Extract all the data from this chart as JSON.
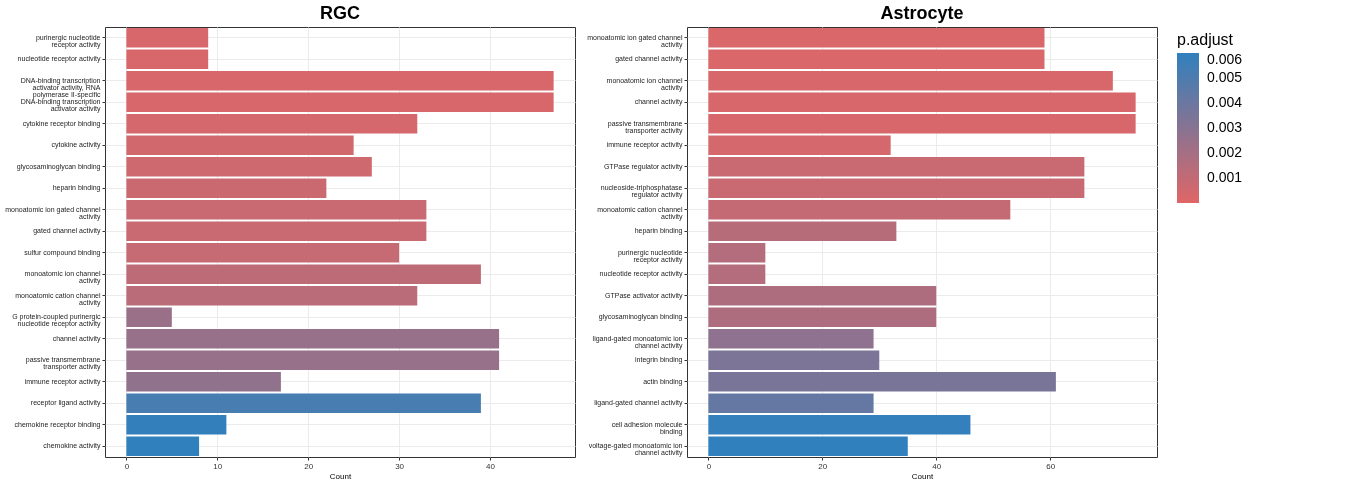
{
  "chart_data": [
    {
      "type": "bar",
      "orientation": "horizontal",
      "title": "RGC",
      "xlabel": "Count",
      "categories": [
        "purinergic nucleotide receptor activity",
        "nucleotide receptor activity",
        "DNA-binding transcription activator activity, RNA polymerase II-specific",
        "DNA-binding transcription activator activity",
        "cytokine receptor binding",
        "cytokine activity",
        "glycosaminoglycan binding",
        "heparin binding",
        "monoatomic ion gated channel activity",
        "gated channel activity",
        "sulfur compound binding",
        "monoatomic ion channel activity",
        "monoatomic cation channel activity",
        "G protein-coupled purinergic nucleotide receptor activity",
        "channel activity",
        "passive transmembrane transporter activity",
        "immune receptor activity",
        "receptor ligand activity",
        "chemokine receptor binding",
        "chemokine activity"
      ],
      "values": [
        9,
        9,
        47,
        47,
        32,
        25,
        27,
        22,
        33,
        33,
        30,
        39,
        32,
        5,
        41,
        41,
        17,
        39,
        11,
        8
      ],
      "colors": [
        "#d7676a",
        "#d7676a",
        "#d7676a",
        "#d7676a",
        "#d4686c",
        "#d1686d",
        "#ce696f",
        "#cb6970",
        "#c96972",
        "#c96972",
        "#c66a73",
        "#bd6b77",
        "#ba6c79",
        "#9a7089",
        "#97718a",
        "#97718a",
        "#91728d",
        "#477db1",
        "#337fbc",
        "#3080bd"
      ],
      "xlim": [
        -2.35,
        49.35
      ],
      "xticks": [
        0,
        10,
        20,
        30,
        40
      ],
      "grid": true
    },
    {
      "type": "bar",
      "orientation": "horizontal",
      "title": "Astrocyte",
      "xlabel": "Count",
      "categories": [
        "monoatomic ion gated channel activity",
        "gated channel activity",
        "monoatomic ion channel activity",
        "channel activity",
        "passive transmembrane transporter activity",
        "immune receptor activity",
        "GTPase regulator activity",
        "nucleoside-triphosphatase regulator activity",
        "monoatomic cation channel activity",
        "heparin binding",
        "purinergic nucleotide receptor activity",
        "nucleotide receptor activity",
        "GTPase activator activity",
        "glycosaminoglycan binding",
        "ligand-gated monoatomic ion channel activity",
        "integrin binding",
        "actin binding",
        "ligand-gated channel activity",
        "cell adhesion molecule binding",
        "voltage-gated monoatomic ion channel activity"
      ],
      "values": [
        59,
        59,
        71,
        75,
        75,
        32,
        66,
        66,
        53,
        33,
        10,
        10,
        40,
        40,
        29,
        30,
        61,
        29,
        46,
        35
      ],
      "cvalues": [
        0.0002,
        0.0002,
        0.0003,
        0.0003,
        0.0003,
        0.0004,
        0.0008,
        0.0008,
        0.001,
        0.0014,
        0.0015,
        0.0015,
        0.0017,
        0.0017,
        0.0028,
        0.0034,
        0.0035,
        0.0042,
        0.0059,
        0.006
      ],
      "xlim": [
        -3.75,
        78.75
      ],
      "xticks": [
        0,
        20,
        40,
        60
      ],
      "grid": true,
      "clabel": "p.adjust",
      "clim": [
        0,
        0.006
      ],
      "cticks": [
        0.001,
        0.002,
        0.003,
        0.004,
        0.005,
        0.006
      ]
    }
  ]
}
